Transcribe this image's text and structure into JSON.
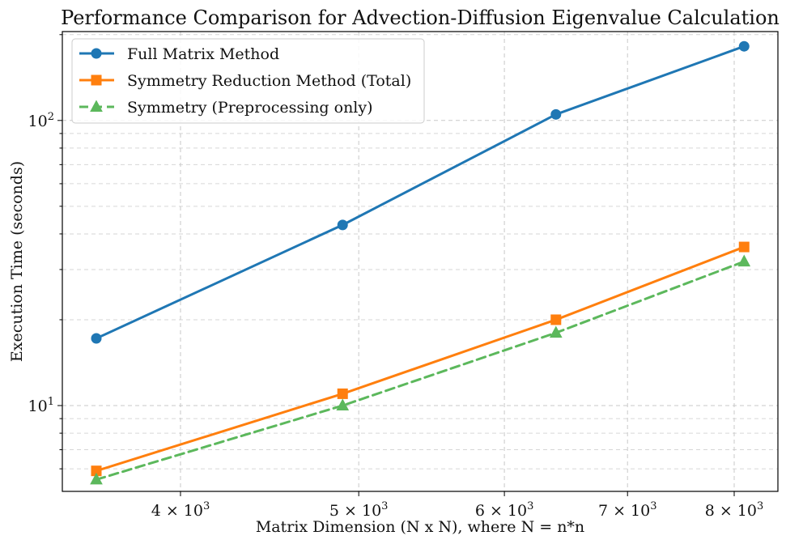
{
  "chart_data": {
    "type": "line",
    "title": "Performance Comparison for Advection-Diffusion Eigenvalue Calculation",
    "xlabel": "Matrix Dimension (N x N), where N = n*n",
    "ylabel": "Execution Time (seconds)",
    "xscale": "log",
    "yscale": "log",
    "xlim": [
      3450,
      8450
    ],
    "ylim": [
      5.0,
      205
    ],
    "grid": true,
    "legend_position": "top-left",
    "x_ticks": [
      {
        "value": 4000,
        "mantissa": "4",
        "base": "10",
        "exp": "3"
      },
      {
        "value": 5000,
        "mantissa": "5",
        "base": "10",
        "exp": "3"
      },
      {
        "value": 6000,
        "mantissa": "6",
        "base": "10",
        "exp": "3"
      },
      {
        "value": 7000,
        "mantissa": "7",
        "base": "10",
        "exp": "3"
      },
      {
        "value": 8000,
        "mantissa": "8",
        "base": "10",
        "exp": "3"
      }
    ],
    "y_ticks": [
      {
        "value": 10,
        "base": "10",
        "exp": "1"
      },
      {
        "value": 100,
        "base": "10",
        "exp": "2"
      }
    ],
    "x": [
      3600,
      4900,
      6400,
      8100
    ],
    "series": [
      {
        "name": "Full Matrix Method",
        "values": [
          17.2,
          43,
          105,
          182
        ],
        "color": "#1f77b4",
        "marker": "circle",
        "dash": "solid"
      },
      {
        "name": "Symmetry Reduction Method (Total)",
        "values": [
          5.9,
          11,
          20,
          36
        ],
        "color": "#ff7f0e",
        "marker": "square",
        "dash": "solid"
      },
      {
        "name": "Symmetry (Preprocessing only)",
        "values": [
          5.5,
          10,
          18,
          32
        ],
        "color": "#5cb85c",
        "marker": "triangle",
        "dash": "dashed"
      }
    ]
  }
}
